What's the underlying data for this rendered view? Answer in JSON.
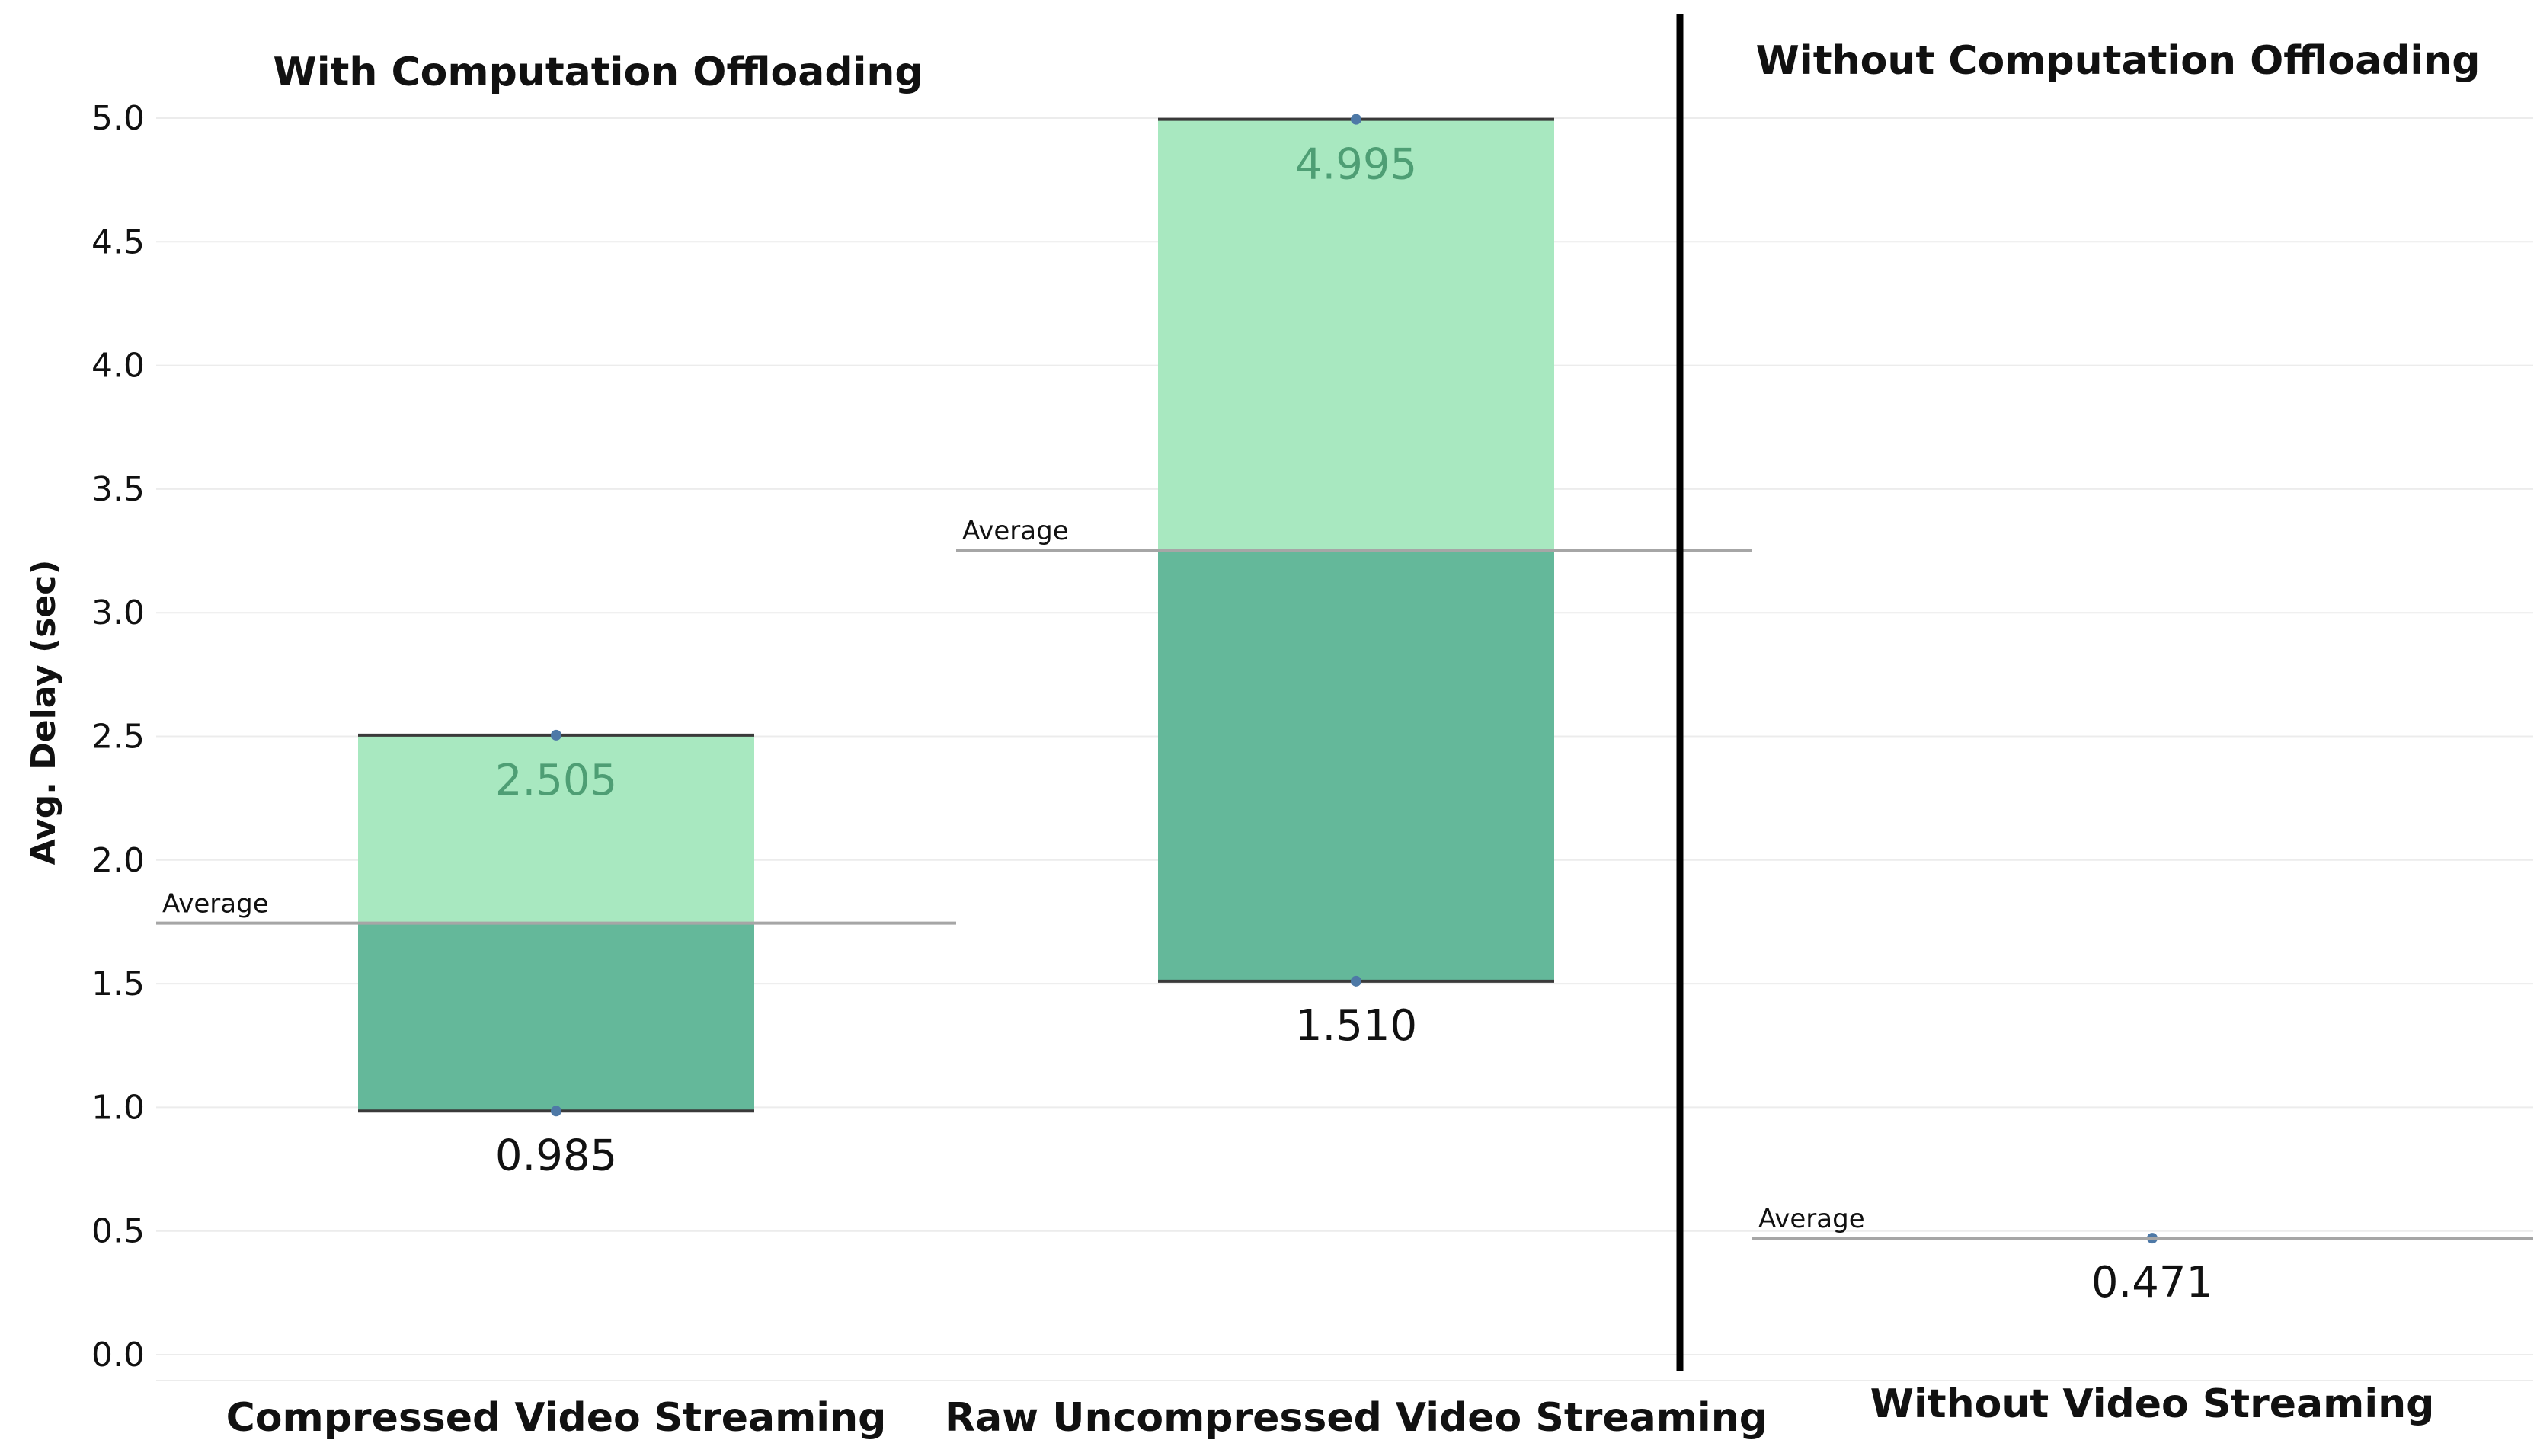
{
  "chart_data": {
    "type": "bar",
    "subtype": "floating range bar with average line",
    "ylabel": "Avg. Delay (sec)",
    "ylim": [
      0,
      5.2
    ],
    "yticks": [
      "0.0",
      "0.5",
      "1.0",
      "1.5",
      "2.0",
      "2.5",
      "3.0",
      "3.5",
      "4.0",
      "4.5",
      "5.0"
    ],
    "grid": true,
    "panels": [
      {
        "title": "With Computation Offloading",
        "categories": [
          {
            "label": "Compressed Video Streaming",
            "min": 0.985,
            "max": 2.505,
            "average": 1.745,
            "min_label": "0.985",
            "max_label": "2.505",
            "average_label": "Average"
          },
          {
            "label": "Raw Uncompressed Video Streaming",
            "min": 1.51,
            "max": 4.995,
            "average": 3.253,
            "min_label": "1.510",
            "max_label": "4.995",
            "average_label": "Average"
          }
        ]
      },
      {
        "title": "Without Computation Offloading",
        "categories": [
          {
            "label": "Without Video Streaming",
            "min": 0.471,
            "max": 0.471,
            "average": 0.471,
            "min_label": "0.471",
            "max_label": "",
            "average_label": "Average"
          }
        ]
      }
    ],
    "colors": {
      "upper_band": "#a8e8c0",
      "lower_band": "#64b89a",
      "point": "#4e79a7",
      "max_label": "#4e9e74",
      "average_line": "#a6a6a6",
      "divider": "#000000",
      "grid": "#ececec",
      "range_edge": "#3a3a3a"
    }
  }
}
